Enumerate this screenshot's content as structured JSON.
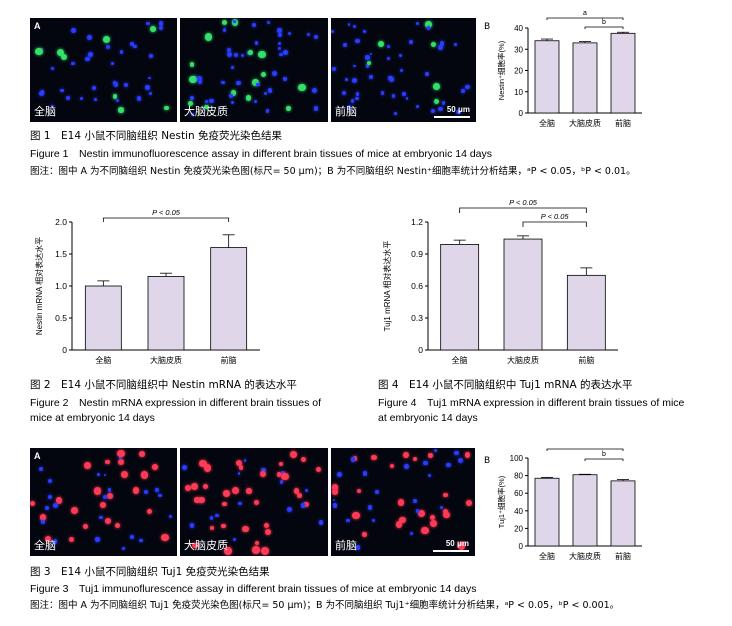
{
  "figure1": {
    "panel_labels": {
      "a": "A",
      "b": "B"
    },
    "image_labels": [
      "全脑",
      "大脑皮质",
      "前脑"
    ],
    "scale_bar": "50 μm",
    "caption_cn": "图 1　E14 小鼠不同脑组织 Nestin 免疫荧光染色结果",
    "caption_en": "Figure 1　Nestin immunofluorescence assay in different brain tissues of mice at embryonic 14 days",
    "note": "图注：图中 A 为不同脑组织 Nestin 免疫荧光染色图(标尺= 50 μm)；B 为不同脑组织 Nestin⁺细胞率统计分析结果，ᵃP < 0.05，ᵇP < 0.01。"
  },
  "figure2": {
    "caption_cn": "图 2　E14 小鼠不同脑组织中 Nestin mRNA 的表达水平",
    "caption_en_line1": "Figure 2　Nestin mRNA expression in different brain tissues of",
    "caption_en_line2": "mice at embryonic 14 days"
  },
  "figure4": {
    "caption_cn": "图 4　E14 小鼠不同脑组织中 Tuj1 mRNA 的表达水平",
    "caption_en_line1": "Figure 4　Tuj1 mRNA expression in different brain tissues of mice",
    "caption_en_line2": "at embryonic 14 days"
  },
  "figure3": {
    "panel_labels": {
      "a": "A",
      "b": "B"
    },
    "image_labels": [
      "全脑",
      "大脑皮质",
      "前脑"
    ],
    "scale_bar": "50 μm",
    "caption_cn": "图 3　E14 小鼠不同脑组织 Tuj1 免疫荧光染色结果",
    "caption_en": "Figure 3　Tuj1 immunoflurescence assay in different brain tissues of mice at embryonic 14 days",
    "note": "图注：图中 A 为不同脑组织 Tuj1 免疫荧光染色图(标尺= 50 μm)；B 为不同脑组织 Tuj1⁺细胞率统计分析结果，ᵃP < 0.05，ᵇP < 0.001。"
  },
  "colors": {
    "bar_fill": "#e0d6ea",
    "nuclei": "#2a3cff",
    "nestin_green": "#35e06a",
    "tuj1_red": "#ff3a55"
  },
  "chart_data": [
    {
      "id": "fig1b",
      "type": "bar",
      "categories": [
        "全脑",
        "大脑皮质",
        "前脑"
      ],
      "values": [
        34,
        33,
        37.5
      ],
      "errors": [
        0.8,
        0.6,
        0.5
      ],
      "ylabel": "Nestin⁺细胞率(%)",
      "ylim": [
        0,
        40
      ],
      "yticks": [
        0,
        10,
        20,
        30,
        40
      ],
      "ytick_labels": [
        "0",
        "10",
        "20",
        "30",
        "40"
      ],
      "annotations": [
        {
          "from": 0,
          "to": 2,
          "label": "a"
        },
        {
          "from": 1,
          "to": 2,
          "label": "b"
        }
      ]
    },
    {
      "id": "fig2",
      "type": "bar",
      "categories": [
        "全脑",
        "大脑皮质",
        "前脑"
      ],
      "values": [
        1.0,
        1.15,
        1.6
      ],
      "errors": [
        0.08,
        0.05,
        0.2
      ],
      "ylabel": "Nestin mRNA 相对表达水平",
      "ylim": [
        0,
        2.0
      ],
      "yticks": [
        0,
        0.5,
        1.0,
        1.5,
        2.0
      ],
      "ytick_labels": [
        "0",
        "0.5",
        "1.0",
        "1.5",
        "2.0"
      ],
      "annotations": [
        {
          "from": 0,
          "to": 2,
          "label": "P < 0.05"
        }
      ]
    },
    {
      "id": "fig4",
      "type": "bar",
      "categories": [
        "全脑",
        "大脑皮质",
        "前脑"
      ],
      "values": [
        0.99,
        1.04,
        0.7
      ],
      "errors": [
        0.04,
        0.03,
        0.07
      ],
      "ylabel": "Tuj1 mRNA 相对表达水平",
      "ylim": [
        0,
        1.2
      ],
      "yticks": [
        0,
        0.3,
        0.6,
        0.9,
        1.2
      ],
      "ytick_labels": [
        "0",
        "0.3",
        "0.6",
        "0.9",
        "1.2"
      ],
      "annotations": [
        {
          "from": 0,
          "to": 2,
          "label": "P < 0.05"
        },
        {
          "from": 1,
          "to": 2,
          "label": "P < 0.05"
        }
      ]
    },
    {
      "id": "fig3b",
      "type": "bar",
      "categories": [
        "全脑",
        "大脑皮质",
        "前脑"
      ],
      "values": [
        77,
        81,
        74
      ],
      "errors": [
        1.0,
        0.5,
        1.5
      ],
      "ylabel": "Tuj1⁺细胞率(%)",
      "ylim": [
        0,
        100
      ],
      "yticks": [
        0,
        20,
        40,
        60,
        80,
        100
      ],
      "ytick_labels": [
        "0",
        "20",
        "40",
        "60",
        "80",
        "100"
      ],
      "annotations": [
        {
          "from": 0,
          "to": 2,
          "label": "a"
        },
        {
          "from": 1,
          "to": 2,
          "label": "b"
        }
      ]
    }
  ]
}
